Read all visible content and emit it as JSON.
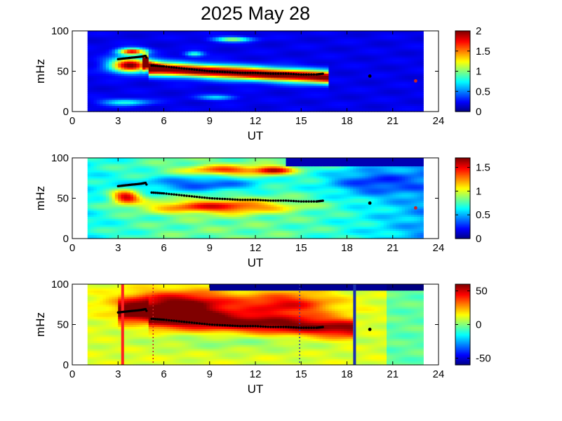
{
  "title": "2025 May 28",
  "chart_data": [
    {
      "type": "heatmap",
      "xlabel": "UT",
      "ylabel": "mHz",
      "xlim": [
        0,
        24
      ],
      "ylim": [
        0,
        100
      ],
      "x_ticks": [
        "0",
        "3",
        "6",
        "9",
        "12",
        "15",
        "18",
        "21",
        "24"
      ],
      "y_ticks": [
        "0",
        "50",
        "100"
      ],
      "colorbar": {
        "range": [
          0,
          2
        ],
        "ticks": [
          "0",
          "0.5",
          "1",
          "1.5",
          "2"
        ]
      },
      "data_extent_ut": [
        1.0,
        23.0
      ],
      "peak_frequency_track": {
        "ut": [
          3.0,
          3.5,
          4.0,
          4.5,
          4.8,
          5.2,
          6,
          7,
          8,
          9,
          10,
          11,
          12,
          13,
          14,
          15,
          16,
          16.5
        ],
        "mhz": [
          65,
          66,
          67,
          68,
          69,
          57,
          56,
          54,
          52,
          50,
          49,
          48,
          48,
          47,
          47,
          46,
          46,
          47
        ]
      },
      "isolated_points": [
        {
          "ut": 19.5,
          "mhz": 44,
          "color": "#000000"
        },
        {
          "ut": 22.5,
          "mhz": 38,
          "color": "#cc2222"
        }
      ]
    },
    {
      "type": "heatmap",
      "xlabel": "UT",
      "ylabel": "mHz",
      "xlim": [
        0,
        24
      ],
      "ylim": [
        0,
        100
      ],
      "x_ticks": [
        "0",
        "3",
        "6",
        "9",
        "12",
        "15",
        "18",
        "21",
        "24"
      ],
      "y_ticks": [
        "0",
        "50",
        "100"
      ],
      "colorbar": {
        "range": [
          0,
          1.7
        ],
        "ticks": [
          "0",
          "0.5",
          "1",
          "1.5"
        ]
      },
      "data_extent_ut": [
        1.0,
        23.0
      ],
      "peak_frequency_track": {
        "ut": [
          3.0,
          3.5,
          4.0,
          4.5,
          4.8,
          5.2,
          6,
          7,
          8,
          9,
          10,
          11,
          12,
          13,
          14,
          15,
          16,
          16.5
        ],
        "mhz": [
          65,
          66,
          67,
          68,
          69,
          57,
          56,
          54,
          52,
          50,
          49,
          48,
          48,
          47,
          47,
          46,
          46,
          47
        ]
      },
      "isolated_points": [
        {
          "ut": 19.5,
          "mhz": 44,
          "color": "#000000"
        },
        {
          "ut": 22.5,
          "mhz": 38,
          "color": "#cc2222"
        }
      ]
    },
    {
      "type": "heatmap",
      "xlabel": "UT",
      "ylabel": "mHz",
      "xlim": [
        0,
        24
      ],
      "ylim": [
        0,
        100
      ],
      "x_ticks": [
        "0",
        "3",
        "6",
        "9",
        "12",
        "15",
        "18",
        "21",
        "24"
      ],
      "y_ticks": [
        "0",
        "50",
        "100"
      ],
      "colorbar": {
        "range": [
          -60,
          60
        ],
        "ticks": [
          "-50",
          "0",
          "50"
        ]
      },
      "data_extent_ut": [
        1.0,
        23.0
      ],
      "peak_frequency_track": {
        "ut": [
          3.0,
          3.5,
          4.0,
          4.5,
          4.8,
          5.2,
          6,
          7,
          8,
          9,
          10,
          11,
          12,
          13,
          14,
          15,
          16,
          16.5
        ],
        "mhz": [
          65,
          66,
          67,
          68,
          69,
          57,
          56,
          54,
          52,
          50,
          49,
          48,
          48,
          47,
          47,
          46,
          46,
          47
        ]
      },
      "isolated_points": [
        {
          "ut": 19.5,
          "mhz": 44,
          "color": "#000000"
        }
      ],
      "vertical_lines": [
        {
          "ut": 3.3,
          "color": "#ff2020",
          "style": "solid"
        },
        {
          "ut": 5.3,
          "color": "#cc2222",
          "style": "dotted"
        },
        {
          "ut": 14.9,
          "color": "#3333aa",
          "style": "dotted"
        },
        {
          "ut": 18.5,
          "color": "#1a2fb0",
          "style": "solid"
        }
      ]
    }
  ]
}
